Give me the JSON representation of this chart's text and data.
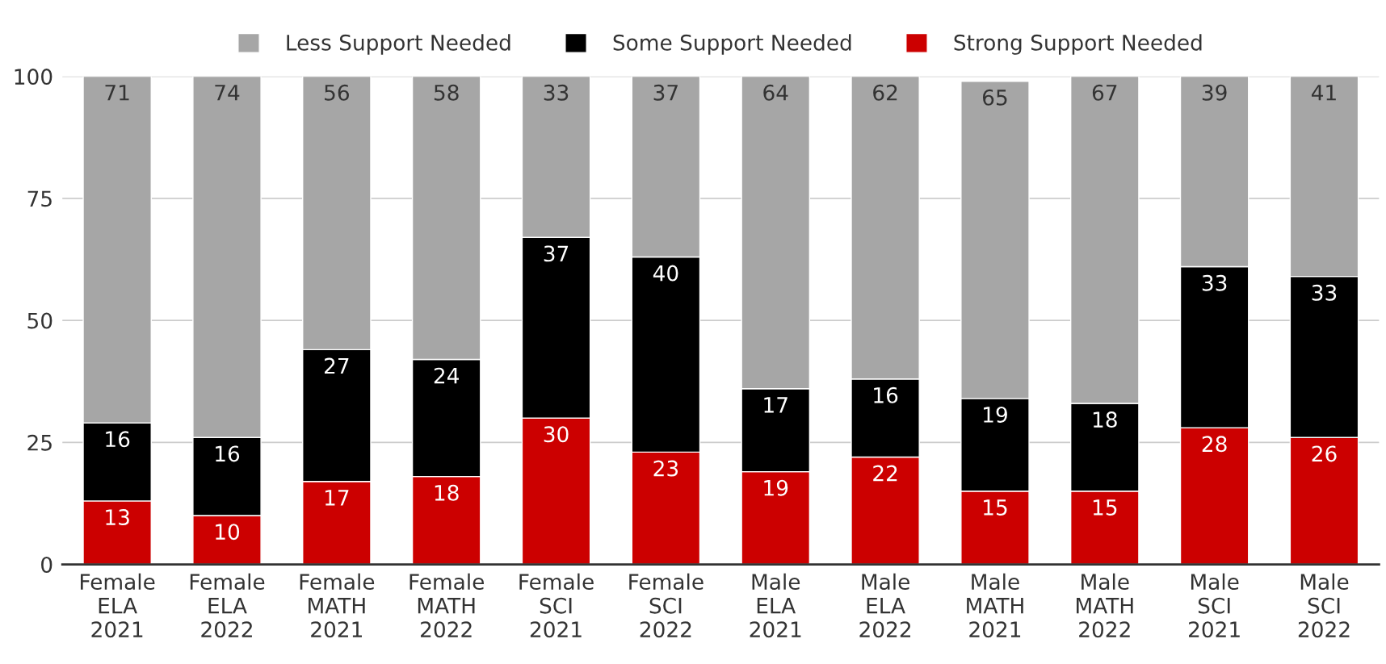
{
  "chart_data": {
    "type": "bar",
    "stacked": true,
    "categories": [
      "Female\nELA\n2021",
      "Female\nELA\n2022",
      "Female\nMATH\n2021",
      "Female\nMATH\n2022",
      "Female\nSCI\n2021",
      "Female\nSCI\n2022",
      "Male\nELA\n2021",
      "Male\nELA\n2022",
      "Male\nMATH\n2021",
      "Male\nMATH\n2022",
      "Male\nSCI\n2021",
      "Male\nSCI\n2022"
    ],
    "series": [
      {
        "name": "Strong Support Needed",
        "color": "#cc0000",
        "values": [
          13,
          10,
          17,
          18,
          30,
          23,
          19,
          22,
          15,
          15,
          28,
          26
        ]
      },
      {
        "name": "Some Support Needed",
        "color": "#000000",
        "values": [
          16,
          16,
          27,
          24,
          37,
          40,
          17,
          16,
          19,
          18,
          33,
          33
        ]
      },
      {
        "name": "Less Support Needed",
        "color": "#a6a6a6",
        "values": [
          71,
          74,
          56,
          58,
          33,
          37,
          64,
          62,
          65,
          67,
          39,
          41
        ]
      }
    ],
    "ylim": [
      0,
      100
    ],
    "yticks": [
      0,
      25,
      50,
      75,
      100
    ],
    "grid": "y",
    "legend": "top",
    "data_labels": true
  }
}
